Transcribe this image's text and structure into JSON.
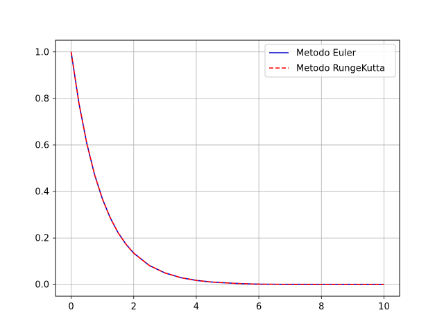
{
  "chart_data": {
    "type": "line",
    "title": "",
    "xlabel": "",
    "ylabel": "",
    "xlim": [
      -0.5,
      10.5
    ],
    "ylim": [
      -0.05,
      1.05
    ],
    "xticks": [
      0,
      2,
      4,
      6,
      8,
      10
    ],
    "yticks": [
      0.0,
      0.2,
      0.4,
      0.6,
      0.8,
      1.0
    ],
    "xtick_labels": [
      "0",
      "2",
      "4",
      "6",
      "8",
      "10"
    ],
    "ytick_labels": [
      "0.0",
      "0.2",
      "0.4",
      "0.6",
      "0.8",
      "1.0"
    ],
    "grid": true,
    "legend_position": "top-right",
    "series": [
      {
        "name": "Metodo Euler",
        "color": "#0000cc",
        "style": "solid",
        "x": [
          0,
          0.25,
          0.5,
          0.75,
          1,
          1.25,
          1.5,
          1.75,
          2,
          2.5,
          3,
          3.5,
          4,
          4.5,
          5,
          5.5,
          6,
          7,
          8,
          9,
          10
        ],
        "y": [
          1.0,
          0.779,
          0.607,
          0.472,
          0.368,
          0.287,
          0.223,
          0.174,
          0.135,
          0.082,
          0.05,
          0.03,
          0.018,
          0.011,
          0.007,
          0.004,
          0.002,
          0.001,
          0.0003,
          0.0001,
          0.0
        ]
      },
      {
        "name": "Metodo RungeKutta",
        "color": "#ff0000",
        "style": "dashed",
        "x": [
          0,
          0.25,
          0.5,
          0.75,
          1,
          1.25,
          1.5,
          1.75,
          2,
          2.5,
          3,
          3.5,
          4,
          4.5,
          5,
          5.5,
          6,
          7,
          8,
          9,
          10
        ],
        "y": [
          1.0,
          0.779,
          0.607,
          0.472,
          0.368,
          0.287,
          0.223,
          0.174,
          0.135,
          0.082,
          0.05,
          0.03,
          0.018,
          0.011,
          0.007,
          0.004,
          0.002,
          0.001,
          0.0003,
          0.0001,
          0.0
        ]
      }
    ]
  }
}
